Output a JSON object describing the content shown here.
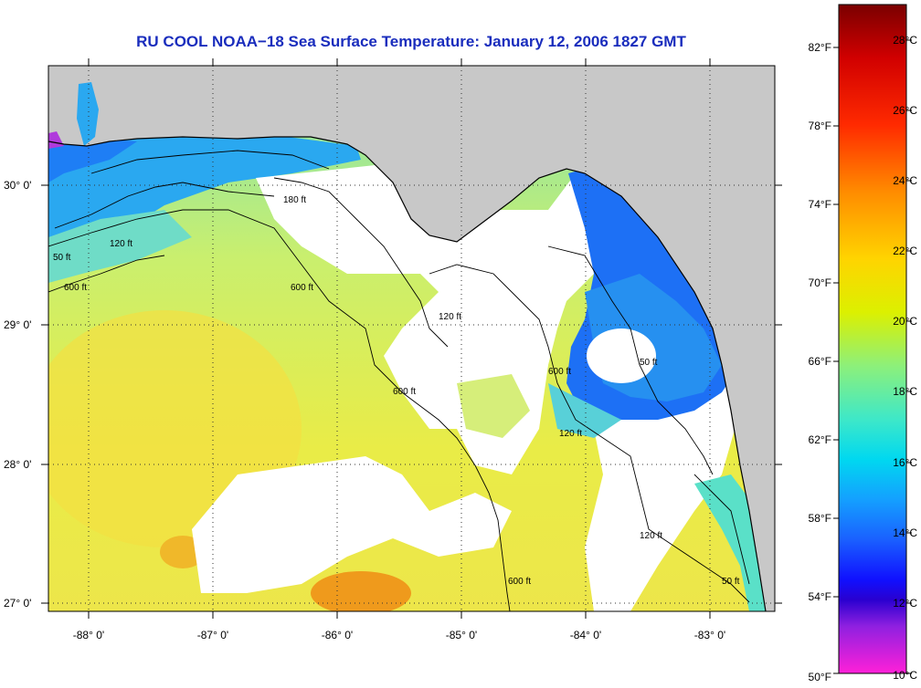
{
  "title": "RU COOL  NOAA−18  Sea Surface Temperature:  January 12, 2006 1827 GMT",
  "colors": {
    "land": "#c8c8c8",
    "cloud": "#ffffff",
    "title": "#1a2dbd"
  },
  "map": {
    "lat_ticks": [
      "30° 0'",
      "29° 0'",
      "28° 0'",
      "27° 0'"
    ],
    "lon_ticks": [
      "-88° 0'",
      "-87° 0'",
      "-86° 0'",
      "-85° 0'",
      "-84° 0'",
      "-83° 0'"
    ],
    "contour_labels": [
      "50 ft",
      "120 ft",
      "180 ft",
      "600 ft",
      "600 ft",
      "120 ft",
      "600 ft",
      "50 ft",
      "120 ft",
      "600 ft",
      "120 ft",
      "50 ft",
      "600 ft"
    ]
  },
  "colorbar": {
    "fahrenheit": [
      "82°F",
      "78°F",
      "74°F",
      "70°F",
      "66°F",
      "62°F",
      "58°F",
      "54°F",
      "50°F"
    ],
    "celsius": [
      "28°C",
      "26°C",
      "24°C",
      "22°C",
      "20°C",
      "18°C",
      "16°C",
      "14°C",
      "12°C",
      "10°C"
    ]
  }
}
